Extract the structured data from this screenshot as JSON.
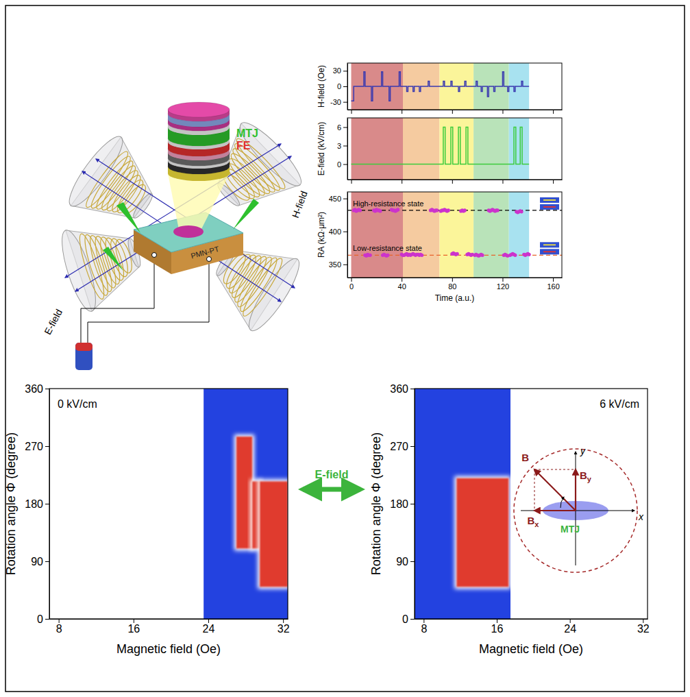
{
  "diagram": {
    "mtj": "MTJ",
    "fe": "FE",
    "substrate": "PMN-PT",
    "h_field": "H-field",
    "e_field": "E-field"
  },
  "arrow": {
    "label": "E-field"
  },
  "chart_data": [
    {
      "type": "line",
      "ylabel": "H-field (Oe)",
      "xlim": [
        -3,
        167
      ],
      "xticks": [
        0,
        40,
        80,
        120,
        160
      ],
      "tick_labels": "y",
      "ylim": [
        -45,
        45
      ],
      "yticks": [
        -30,
        0,
        30
      ],
      "color": "#3a3ab0",
      "line_style": "step",
      "x": [
        0,
        2,
        10,
        11,
        16,
        17,
        24,
        25,
        30,
        31,
        38,
        39,
        44,
        45,
        49,
        50,
        54,
        55,
        61,
        62,
        73,
        74,
        79,
        80,
        85,
        86,
        90,
        91,
        99,
        100,
        103,
        104,
        108,
        109,
        113,
        114,
        120,
        121,
        124,
        125,
        129,
        130,
        135,
        136,
        141
      ],
      "values": [
        -28,
        0,
        28,
        0,
        -28,
        0,
        28,
        0,
        -28,
        0,
        28,
        0,
        -10,
        0,
        -10,
        0,
        -10,
        0,
        10,
        0,
        10,
        0,
        10,
        0,
        -10,
        0,
        10,
        0,
        10,
        0,
        -10,
        0,
        -20,
        0,
        -10,
        0,
        28,
        0,
        -10,
        0,
        -10,
        0,
        10,
        0,
        0
      ],
      "bands": [
        {
          "start": 0,
          "end": 41,
          "color": "#d98a8a"
        },
        {
          "start": 41,
          "end": 70,
          "color": "#f5cba0"
        },
        {
          "start": 70,
          "end": 97,
          "color": "#fbf59a"
        },
        {
          "start": 97,
          "end": 125,
          "color": "#b9e3b9"
        },
        {
          "start": 125,
          "end": 141,
          "color": "#a8e2f0"
        }
      ]
    },
    {
      "type": "line",
      "ylabel": "E-field (kV/cm)",
      "xlim": [
        -3,
        167
      ],
      "xticks": [
        0,
        40,
        80,
        120,
        160
      ],
      "tick_labels": "y",
      "ylim": [
        -2.5,
        7.5
      ],
      "yticks": [
        0,
        3,
        6
      ],
      "color": "#3ccc3c",
      "line_style": "step",
      "x": [
        0,
        73,
        74.5,
        79,
        80.5,
        85,
        86.5,
        91,
        92.5,
        129,
        130.5,
        134,
        135.5,
        141
      ],
      "values": [
        0,
        6,
        0,
        6,
        0,
        6,
        0,
        6,
        0,
        6,
        0,
        6,
        0,
        0
      ]
    },
    {
      "type": "scatter",
      "ylabel": "RA (kΩ·μm²)",
      "xlabel": "Time (a.u.)",
      "xlim": [
        -3,
        167
      ],
      "xticks": [
        0,
        40,
        80,
        120,
        160
      ],
      "ylim": [
        330,
        460
      ],
      "yticks": [
        350,
        400,
        450
      ],
      "color": "#cc33cc",
      "marker": "circle",
      "x": [
        2,
        3,
        4,
        5,
        6,
        7,
        11,
        12,
        13,
        14,
        15,
        18,
        19,
        20,
        21,
        22,
        23,
        25,
        26,
        27,
        28,
        29,
        32,
        33,
        34,
        35,
        36,
        37,
        40,
        41,
        42,
        43,
        44,
        45,
        46,
        47,
        48,
        49,
        50,
        51,
        52,
        53,
        54,
        55,
        56,
        63,
        64,
        65,
        66,
        67,
        68,
        71,
        72,
        73,
        74,
        75,
        76,
        77,
        80,
        81,
        82,
        83,
        84,
        87,
        88,
        89,
        90,
        92,
        93,
        94,
        95,
        96,
        98,
        99,
        100,
        101,
        102,
        103,
        104,
        109,
        110,
        111,
        112,
        113,
        114,
        115,
        116,
        121,
        122,
        123,
        124,
        126,
        127,
        128,
        129,
        130,
        131,
        132,
        133,
        134,
        135,
        137,
        138,
        139,
        140,
        141
      ],
      "values": [
        432,
        433,
        431,
        432,
        433,
        432,
        364,
        363,
        365,
        364,
        364,
        432,
        431,
        433,
        432,
        432,
        431,
        364,
        365,
        364,
        363,
        364,
        433,
        432,
        432,
        431,
        432,
        433,
        365,
        364,
        364,
        365,
        366,
        364,
        365,
        364,
        365,
        366,
        365,
        364,
        365,
        365,
        364,
        365,
        364,
        432,
        433,
        432,
        431,
        432,
        432,
        431,
        432,
        432,
        433,
        432,
        431,
        432,
        366,
        367,
        366,
        365,
        366,
        431,
        432,
        431,
        432,
        365,
        366,
        365,
        364,
        365,
        364,
        365,
        364,
        363,
        364,
        365,
        364,
        432,
        431,
        432,
        433,
        432,
        431,
        432,
        432,
        364,
        365,
        364,
        363,
        364,
        365,
        366,
        365,
        364,
        430,
        429,
        430,
        431,
        430,
        365,
        364,
        365,
        366,
        365
      ],
      "reference_lines": [
        {
          "value": 432,
          "label": "High-resistance state",
          "color": "#000000",
          "line_style": "dashed"
        },
        {
          "value": 364,
          "label": "Low-resistance state",
          "color": "#e8632b",
          "line_style": "dashed"
        }
      ]
    },
    {
      "type": "heatmap",
      "annotation": "0 kV/cm",
      "xlabel": "Magnetic field (Oe)",
      "ylabel": "Rotation angle Φ (degree)",
      "xlim": [
        7,
        32.5
      ],
      "ylim": [
        0,
        360
      ],
      "xticks": [
        8,
        16,
        24,
        32
      ],
      "yticks": [
        0,
        90,
        180,
        270,
        360
      ],
      "regions": [
        {
          "x": [
            23.5,
            32.5
          ],
          "y": [
            0,
            360
          ],
          "color": "#2342e0"
        },
        {
          "x": [
            27,
            28.7
          ],
          "y": [
            110,
            285
          ],
          "color": "#e03a2e"
        },
        {
          "x": [
            28.7,
            29.5
          ],
          "y": [
            110,
            215
          ],
          "color": "#e03a2e"
        },
        {
          "x": [
            29.5,
            32.5
          ],
          "y": [
            50,
            215
          ],
          "color": "#e03a2e"
        }
      ]
    },
    {
      "type": "heatmap",
      "annotation": "6 kV/cm",
      "xlabel": "Magnetic field (Oe)",
      "ylabel": "Rotation angle Φ (degree)",
      "xlim": [
        7,
        32.5
      ],
      "ylim": [
        0,
        360
      ],
      "xticks": [
        8,
        16,
        24,
        32
      ],
      "yticks": [
        0,
        90,
        180,
        270,
        360
      ],
      "regions": [
        {
          "x": [
            7,
            17.5
          ],
          "y": [
            0,
            360
          ],
          "color": "#2342e0"
        },
        {
          "x": [
            11.6,
            17.3
          ],
          "y": [
            50,
            220
          ],
          "color": "#e03a2e"
        }
      ],
      "inset": {
        "labels": {
          "b": "B",
          "bx": "Bx",
          "by": "By",
          "mtj": "MTJ",
          "x": "x",
          "y": "y"
        }
      }
    }
  ]
}
